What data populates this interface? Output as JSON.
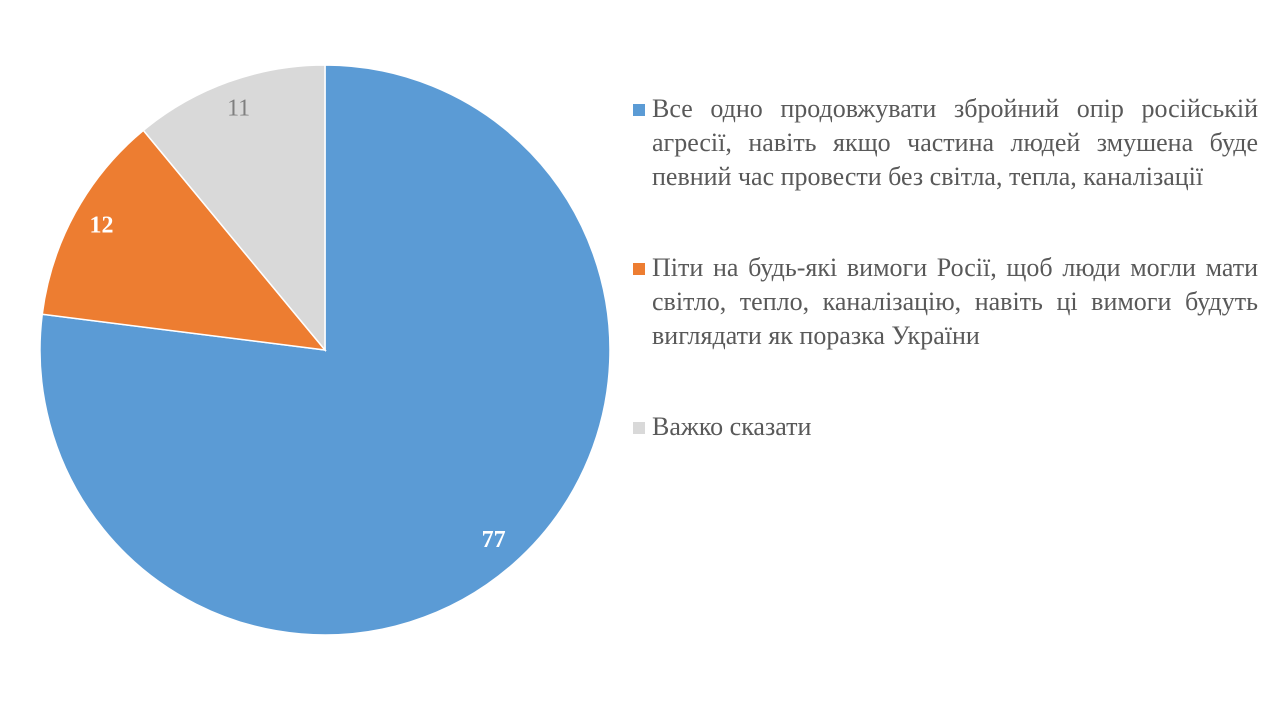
{
  "chart_data": {
    "type": "pie",
    "categories": [
      "Все одно продовжувати збройний опір російській агресії, навіть якщо частина людей змушена буде певний час провести без світла, тепла, каналізації",
      "Піти на будь-які вимоги Росії, щоб люди могли мати світло, тепло, каналізацію, навіть ці вимоги будуть виглядати як поразка України",
      "Важко сказати"
    ],
    "values": [
      77,
      12,
      11
    ],
    "colors": [
      "#5b9bd5",
      "#ed7d31",
      "#d9d9d9"
    ],
    "label_colors": [
      "#ffffff",
      "#ffffff",
      "#7f7f7f"
    ],
    "legend": "right"
  }
}
